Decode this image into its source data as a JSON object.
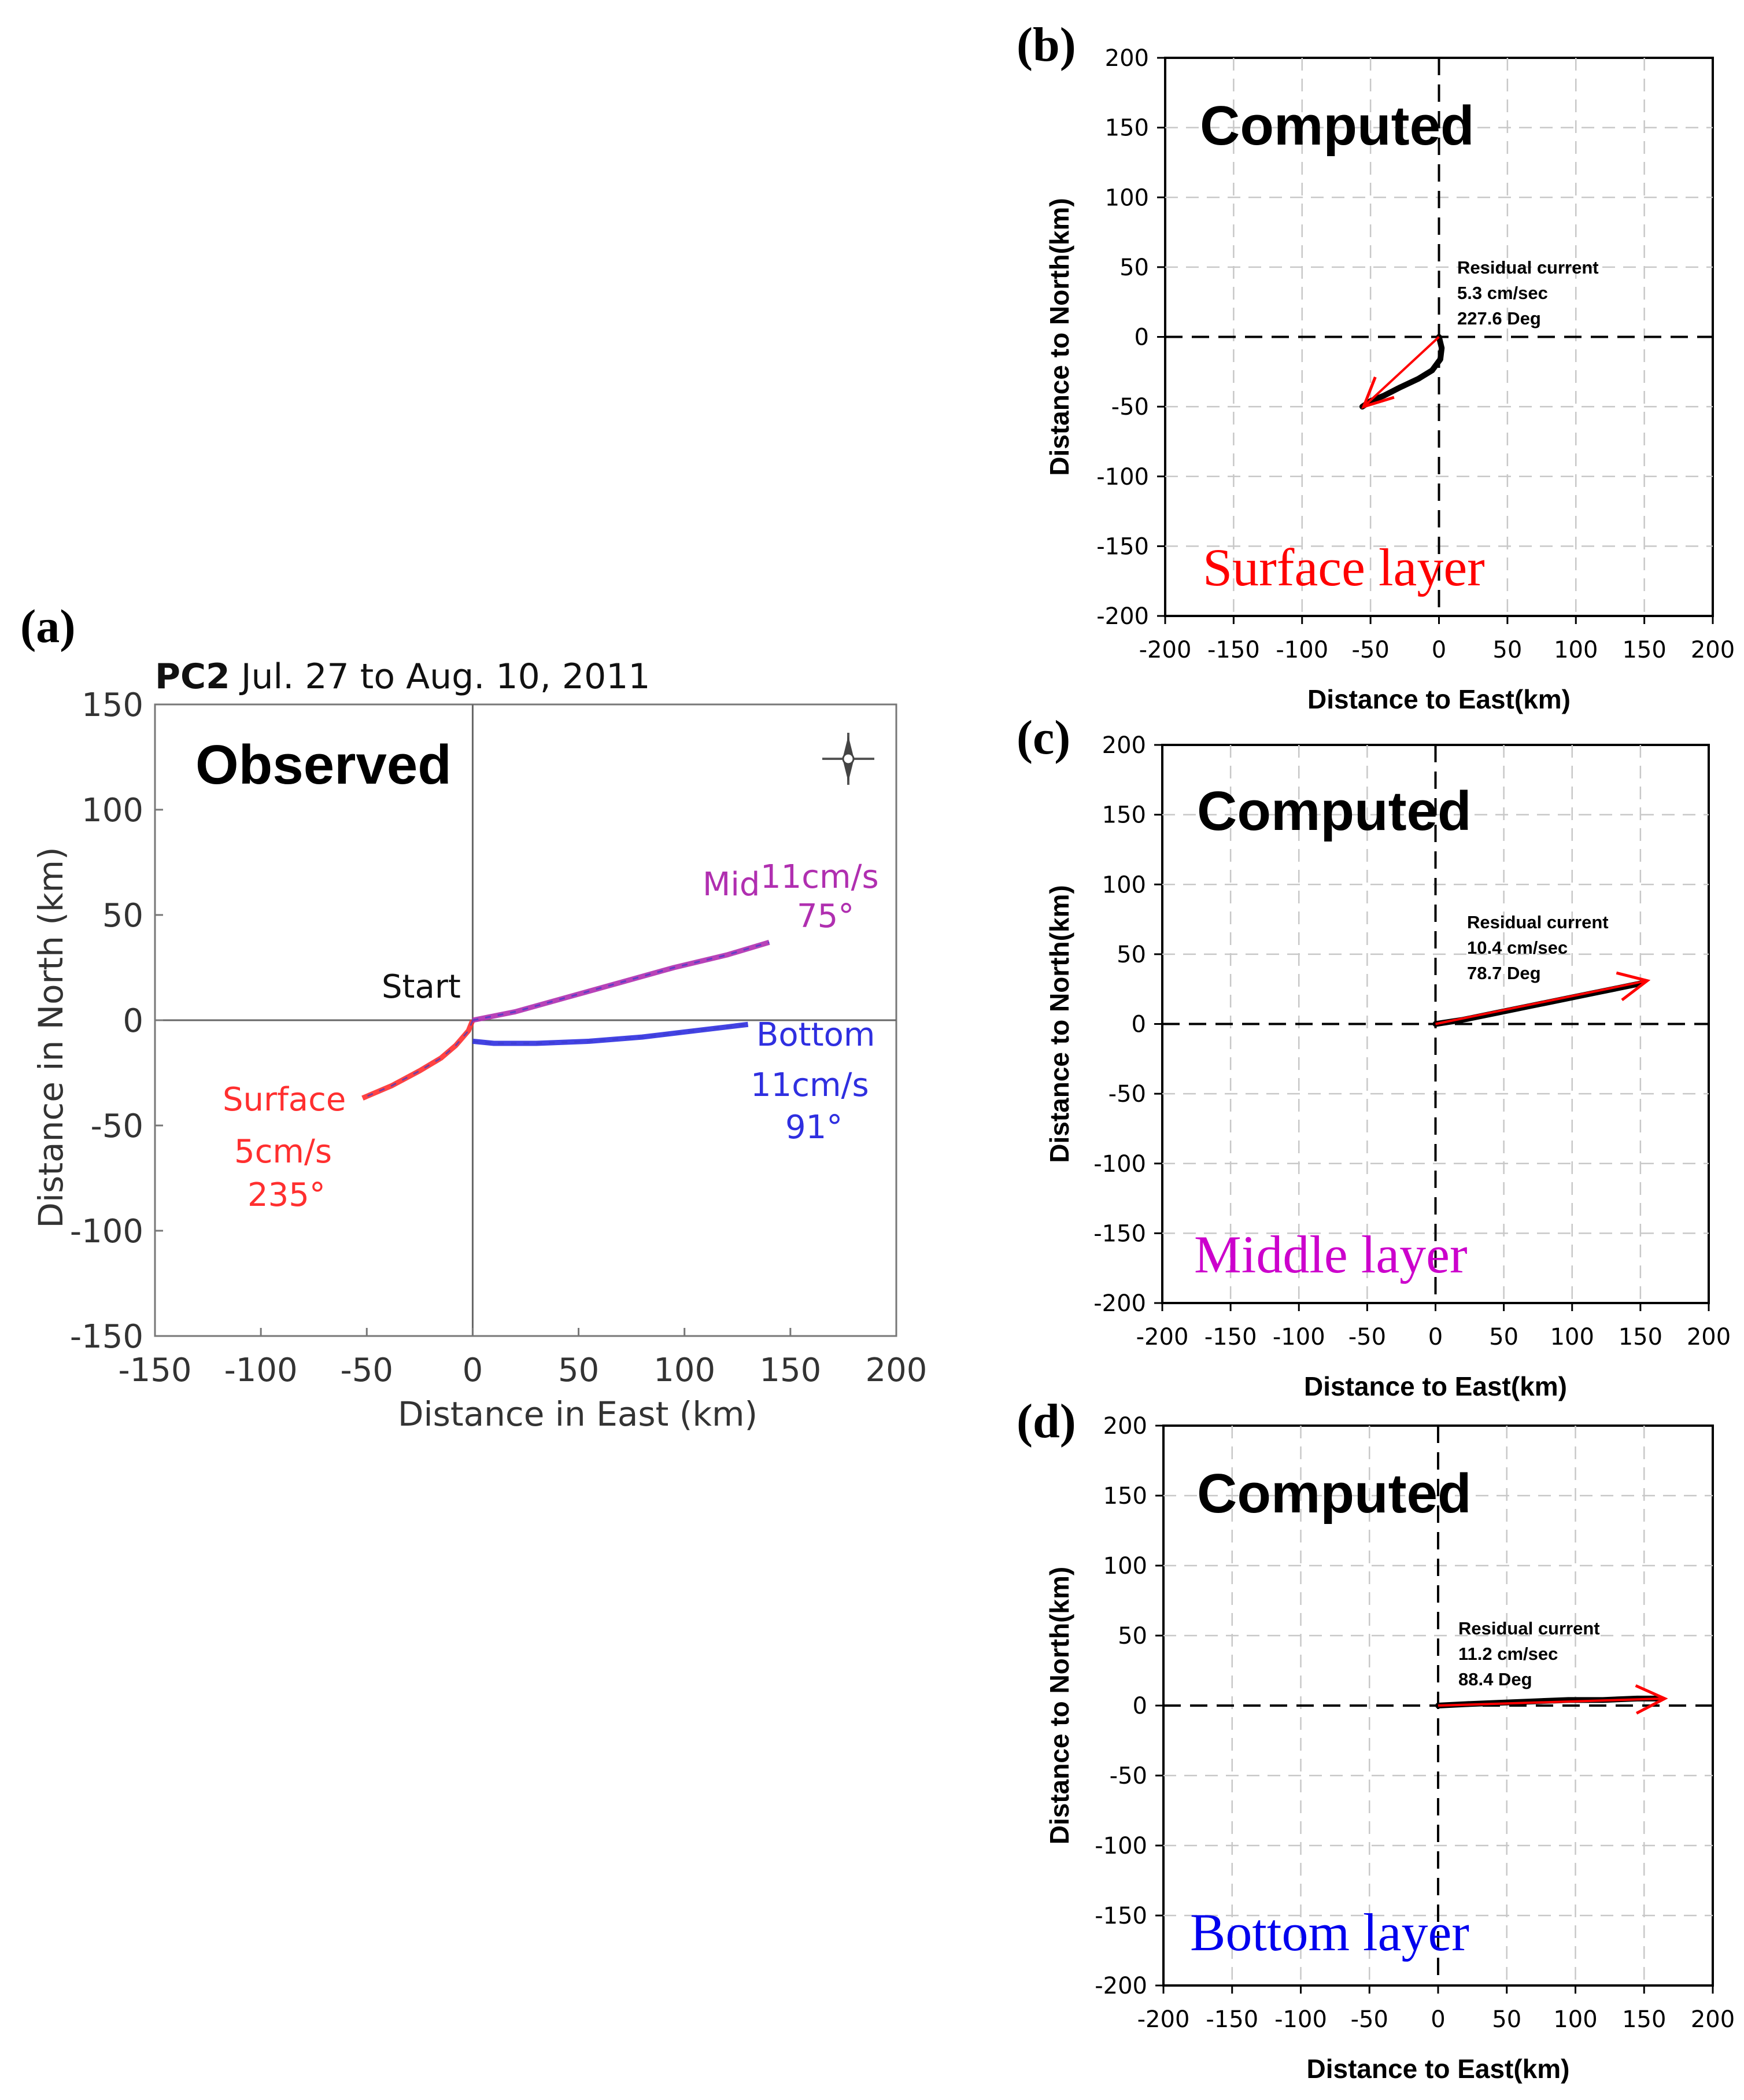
{
  "chart_data": [
    {
      "panel": "(a)",
      "type": "line",
      "header_bold": "PC2",
      "header_text": "Jul. 27 to Aug. 10, 2011",
      "label": "Observed",
      "xlabel": "Distance in East (km)",
      "ylabel": "Distance in North (km)",
      "xlim": [
        -150,
        200
      ],
      "ylim": [
        -150,
        150
      ],
      "xticks": [
        -150,
        -100,
        -50,
        0,
        50,
        100,
        150,
        200
      ],
      "yticks": [
        -150,
        -100,
        -50,
        0,
        50,
        100,
        150
      ],
      "grid": false,
      "start_label": "Start",
      "series": [
        {
          "name": "Surface",
          "speed": "5cm/s",
          "direction": "235°",
          "color": "#ff2f2f",
          "x": [
            0,
            -2,
            -8,
            -15,
            -25,
            -38,
            -52
          ],
          "y": [
            0,
            -5,
            -12,
            -18,
            -24,
            -31,
            -37
          ]
        },
        {
          "name": "Mid",
          "speed": "11cm/s",
          "direction": "75°",
          "color": "#b02fb0",
          "x": [
            0,
            20,
            45,
            70,
            95,
            120,
            140
          ],
          "y": [
            0,
            4,
            11,
            18,
            25,
            31,
            37
          ]
        },
        {
          "name": "Bottom",
          "speed": "11cm/s",
          "direction": "91°",
          "color": "#2f2fe0",
          "x": [
            0,
            10,
            30,
            55,
            80,
            105,
            130
          ],
          "y": [
            -10,
            -11,
            -11,
            -10,
            -8,
            -5,
            -2
          ]
        }
      ]
    },
    {
      "panel": "(b)",
      "type": "line",
      "label": "Computed",
      "layer": "Surface layer",
      "layer_color": "#ff0000",
      "xlabel": "Distance to East(km)",
      "ylabel": "Distance to North(km)",
      "xlim": [
        -200,
        200
      ],
      "ylim": [
        -200,
        200
      ],
      "xticks": [
        -200,
        -150,
        -100,
        -50,
        0,
        50,
        100,
        150,
        200
      ],
      "yticks": [
        -200,
        -150,
        -100,
        -50,
        0,
        50,
        100,
        150,
        200
      ],
      "grid": true,
      "residual": {
        "title": "Residual current",
        "speed": "5.3 cm/sec",
        "direction": "227.6 Deg"
      },
      "trajectory": {
        "x": [
          0,
          2,
          1,
          -5,
          -15,
          -28,
          -40,
          -50,
          -56
        ],
        "y": [
          0,
          -8,
          -16,
          -24,
          -30,
          -36,
          -42,
          -46,
          -50
        ]
      },
      "arrow": {
        "x": [
          0,
          -55
        ],
        "y": [
          0,
          -50
        ]
      }
    },
    {
      "panel": "(c)",
      "type": "line",
      "label": "Computed",
      "layer": "Middle layer",
      "layer_color": "#cc00cc",
      "xlabel": "Distance to East(km)",
      "ylabel": "Distance to North(km)",
      "xlim": [
        -200,
        200
      ],
      "ylim": [
        -200,
        200
      ],
      "xticks": [
        -200,
        -150,
        -100,
        -50,
        0,
        50,
        100,
        150,
        200
      ],
      "yticks": [
        -200,
        -150,
        -100,
        -50,
        0,
        50,
        100,
        150,
        200
      ],
      "grid": true,
      "residual": {
        "title": "Residual current",
        "speed": "10.4 cm/sec",
        "direction": "78.7 Deg"
      },
      "trajectory": {
        "x": [
          0,
          20,
          45,
          70,
          95,
          120,
          140,
          150
        ],
        "y": [
          0,
          3,
          8,
          13,
          18,
          23,
          27,
          29
        ]
      },
      "arrow": {
        "x": [
          0,
          155
        ],
        "y": [
          0,
          31
        ]
      }
    },
    {
      "panel": "(d)",
      "type": "line",
      "label": "Computed",
      "layer": "Bottom layer",
      "layer_color": "#0000ee",
      "xlabel": "Distance to East(km)",
      "ylabel": "Distance to North(km)",
      "xlim": [
        -200,
        200
      ],
      "ylim": [
        -200,
        200
      ],
      "xticks": [
        -200,
        -150,
        -100,
        -50,
        0,
        50,
        100,
        150,
        200
      ],
      "yticks": [
        -200,
        -150,
        -100,
        -50,
        0,
        50,
        100,
        150,
        200
      ],
      "grid": true,
      "residual": {
        "title": "Residual current",
        "speed": "11.2 cm/sec",
        "direction": "88.4 Deg"
      },
      "trajectory": {
        "x": [
          0,
          20,
          45,
          70,
          95,
          120,
          145,
          160
        ],
        "y": [
          0,
          1,
          2,
          3,
          4,
          4,
          5,
          5
        ]
      },
      "arrow": {
        "x": [
          0,
          165
        ],
        "y": [
          0,
          5
        ]
      }
    }
  ]
}
